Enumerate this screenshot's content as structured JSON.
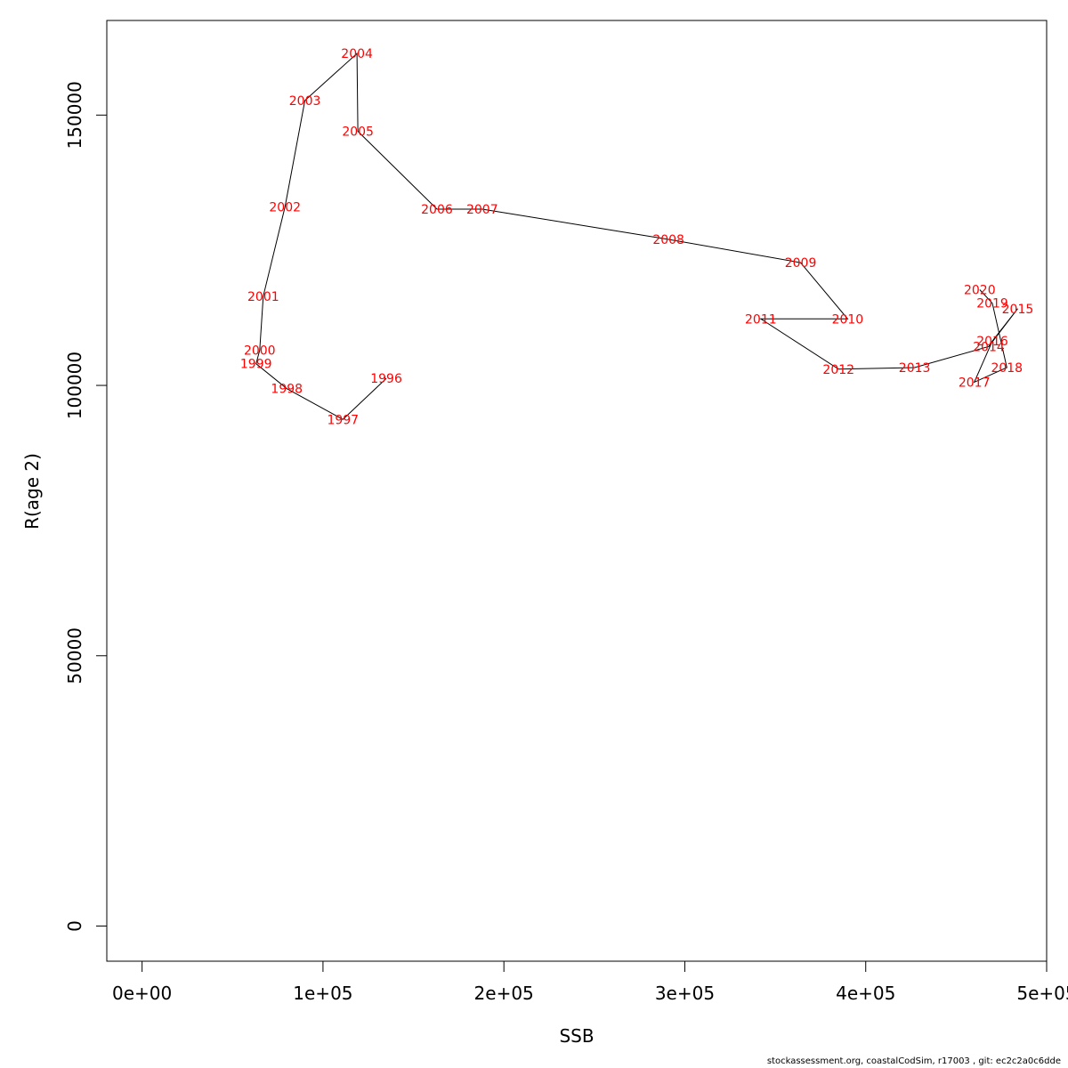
{
  "chart_data": {
    "type": "line",
    "xlabel": "SSB",
    "ylabel": "R(age 2)",
    "xlim": [
      -19500,
      500000
    ],
    "ylim": [
      -6500,
      167500
    ],
    "x_ticks": [
      0,
      100000,
      200000,
      300000,
      400000,
      500000
    ],
    "x_tick_labels": [
      "0e+00",
      "1e+05",
      "2e+05",
      "3e+05",
      "4e+05",
      "5e+05"
    ],
    "y_ticks": [
      0,
      50000,
      100000,
      150000
    ],
    "y_tick_labels": [
      "0",
      "50000",
      "100000",
      "150000"
    ],
    "line_color": "#000000",
    "label_color": "#ff0000",
    "points": [
      {
        "label": "1996",
        "x": 135000,
        "y": 101300
      },
      {
        "label": "1997",
        "x": 111000,
        "y": 93700
      },
      {
        "label": "1998",
        "x": 80000,
        "y": 99400
      },
      {
        "label": "1999",
        "x": 63000,
        "y": 104000
      },
      {
        "label": "2000",
        "x": 65000,
        "y": 106500
      },
      {
        "label": "2001",
        "x": 67000,
        "y": 116500
      },
      {
        "label": "2002",
        "x": 79000,
        "y": 133000
      },
      {
        "label": "2003",
        "x": 90000,
        "y": 152700
      },
      {
        "label": "2004",
        "x": 118800,
        "y": 161400
      },
      {
        "label": "2005",
        "x": 119300,
        "y": 147000
      },
      {
        "label": "2006",
        "x": 163000,
        "y": 132600
      },
      {
        "label": "2007",
        "x": 188000,
        "y": 132600
      },
      {
        "label": "2008",
        "x": 291000,
        "y": 127000
      },
      {
        "label": "2009",
        "x": 364000,
        "y": 122700
      },
      {
        "label": "2010",
        "x": 390000,
        "y": 112300
      },
      {
        "label": "2011",
        "x": 342000,
        "y": 112300
      },
      {
        "label": "2012",
        "x": 385000,
        "y": 103000
      },
      {
        "label": "2013",
        "x": 427000,
        "y": 103300
      },
      {
        "label": "2014",
        "x": 468000,
        "y": 107200
      },
      {
        "label": "2015",
        "x": 484000,
        "y": 114200
      },
      {
        "label": "2016",
        "x": 470000,
        "y": 108200
      },
      {
        "label": "2017",
        "x": 460000,
        "y": 100600
      },
      {
        "label": "2018",
        "x": 478000,
        "y": 103300
      },
      {
        "label": "2019",
        "x": 470000,
        "y": 115200
      },
      {
        "label": "2020",
        "x": 463000,
        "y": 117700
      }
    ]
  },
  "footer": "stockassessment.org, coastalCodSim, r17003 , git: ec2c2a0c6dde"
}
